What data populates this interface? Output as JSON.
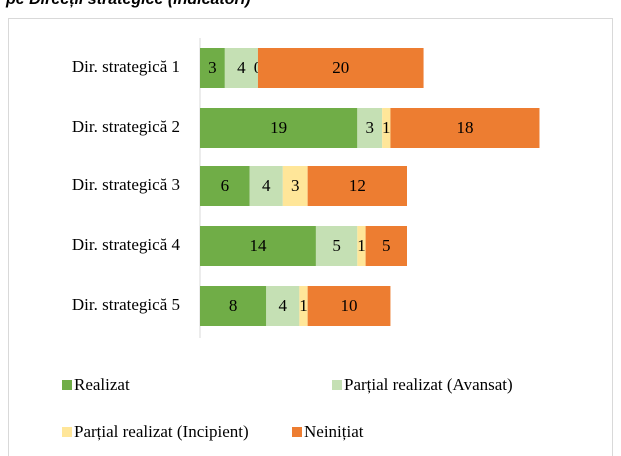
{
  "chart_data": {
    "type": "stacked_barh",
    "title": "pe Direcții strategice (indicatori)",
    "categories": [
      "Dir. strategică 1",
      "Dir. strategică 2",
      "Dir. strategică 3",
      "Dir. strategică 4",
      "Dir. strategică 5"
    ],
    "series": [
      {
        "name": "Realizat",
        "color": "#70ad47",
        "values": [
          3,
          19,
          6,
          14,
          8
        ]
      },
      {
        "name": "Parțial realizat (Avansat)",
        "color": "#c5e0b4",
        "values": [
          4,
          3,
          4,
          5,
          4
        ]
      },
      {
        "name": "Parțial realizat (Incipient)",
        "color": "#ffe699",
        "values": [
          0,
          1,
          3,
          1,
          1
        ]
      },
      {
        "name": "Neinițiat",
        "color": "#ed7d31",
        "values": [
          20,
          18,
          12,
          5,
          10
        ]
      }
    ],
    "legend": "bottom"
  }
}
